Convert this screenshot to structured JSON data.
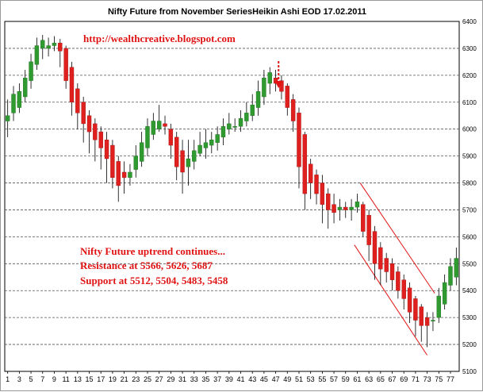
{
  "chart_data": {
    "type": "candlestick",
    "title": "Nifty Future from November SeriesHeikin Ashi EOD 17.02.2011",
    "website": "http://wealthcreative.blogspot.com",
    "annotations": [
      "Nifty Future uptrend continues...",
      "Resistance at 5566, 5626, 5687",
      "Support at 5512, 5504, 5483, 5458"
    ],
    "ylim": [
      5100,
      6400
    ],
    "yticks": [
      5100,
      5200,
      5300,
      5400,
      5500,
      5600,
      5700,
      5800,
      5900,
      6000,
      6100,
      6200,
      6300,
      6400
    ],
    "xlim": [
      1,
      78
    ],
    "xticks": [
      1,
      3,
      5,
      7,
      9,
      11,
      13,
      15,
      17,
      19,
      21,
      23,
      25,
      27,
      29,
      31,
      33,
      35,
      37,
      39,
      41,
      43,
      45,
      47,
      49,
      51,
      53,
      55,
      57,
      59,
      61,
      63,
      65,
      67,
      69,
      71,
      73,
      75,
      77
    ],
    "grid": "horizontal dashed",
    "colors": {
      "up": "#2f9a2f",
      "down": "#e0201e",
      "wick": "#000000",
      "channel": "#e01414",
      "arrow": "#e01414"
    },
    "arrow_at_x": 47.5,
    "channel_lines": [
      {
        "from": [
          61.5,
          5800
        ],
        "to": [
          74.3,
          5390
        ]
      },
      {
        "from": [
          60.5,
          5570
        ],
        "to": [
          73,
          5160
        ]
      }
    ],
    "candles": [
      {
        "x": 1,
        "open": 6030,
        "close": 6050,
        "high": 6110,
        "low": 5970
      },
      {
        "x": 2,
        "open": 6060,
        "close": 6130,
        "high": 6160,
        "low": 6030
      },
      {
        "x": 3,
        "open": 6080,
        "close": 6140,
        "high": 6170,
        "low": 6060
      },
      {
        "x": 4,
        "open": 6120,
        "close": 6190,
        "high": 6220,
        "low": 6100
      },
      {
        "x": 5,
        "open": 6180,
        "close": 6250,
        "high": 6280,
        "low": 6150
      },
      {
        "x": 6,
        "open": 6240,
        "close": 6310,
        "high": 6340,
        "low": 6220
      },
      {
        "x": 7,
        "open": 6300,
        "close": 6330,
        "high": 6350,
        "low": 6260
      },
      {
        "x": 8,
        "open": 6300,
        "close": 6310,
        "high": 6340,
        "low": 6270
      },
      {
        "x": 9,
        "open": 6310,
        "close": 6320,
        "high": 6345,
        "low": 6290
      },
      {
        "x": 10,
        "open": 6320,
        "close": 6290,
        "high": 6335,
        "low": 6230
      },
      {
        "x": 11,
        "open": 6300,
        "close": 6180,
        "high": 6310,
        "low": 6150
      },
      {
        "x": 12,
        "open": 6230,
        "close": 6100,
        "high": 6250,
        "low": 6050
      },
      {
        "x": 13,
        "open": 6150,
        "close": 6060,
        "high": 6170,
        "low": 6000
      },
      {
        "x": 14,
        "open": 6100,
        "close": 6020,
        "high": 6120,
        "low": 5950
      },
      {
        "x": 15,
        "open": 6050,
        "close": 5990,
        "high": 6070,
        "low": 5910
      },
      {
        "x": 16,
        "open": 6020,
        "close": 5960,
        "high": 6040,
        "low": 5880
      },
      {
        "x": 17,
        "open": 5990,
        "close": 5930,
        "high": 6010,
        "low": 5850
      },
      {
        "x": 18,
        "open": 5960,
        "close": 5890,
        "high": 5990,
        "low": 5800
      },
      {
        "x": 19,
        "open": 5940,
        "close": 5820,
        "high": 5960,
        "low": 5780
      },
      {
        "x": 20,
        "open": 5880,
        "close": 5790,
        "high": 5900,
        "low": 5730
      },
      {
        "x": 21,
        "open": 5840,
        "close": 5820,
        "high": 5880,
        "low": 5760
      },
      {
        "x": 22,
        "open": 5820,
        "close": 5840,
        "high": 5870,
        "low": 5790
      },
      {
        "x": 23,
        "open": 5850,
        "close": 5900,
        "high": 5940,
        "low": 5820
      },
      {
        "x": 24,
        "open": 5880,
        "close": 5950,
        "high": 5990,
        "low": 5860
      },
      {
        "x": 25,
        "open": 5930,
        "close": 6010,
        "high": 6040,
        "low": 5900
      },
      {
        "x": 26,
        "open": 5980,
        "close": 6030,
        "high": 6060,
        "low": 5960
      },
      {
        "x": 27,
        "open": 6000,
        "close": 6030,
        "high": 6090,
        "low": 5990
      },
      {
        "x": 28,
        "open": 6020,
        "close": 6010,
        "high": 6050,
        "low": 5980
      },
      {
        "x": 29,
        "open": 6000,
        "close": 5940,
        "high": 6020,
        "low": 5890
      },
      {
        "x": 30,
        "open": 5970,
        "close": 5860,
        "high": 5990,
        "low": 5810
      },
      {
        "x": 31,
        "open": 5920,
        "close": 5840,
        "high": 5960,
        "low": 5760
      },
      {
        "x": 32,
        "open": 5860,
        "close": 5890,
        "high": 5960,
        "low": 5790
      },
      {
        "x": 33,
        "open": 5880,
        "close": 5920,
        "high": 5960,
        "low": 5850
      },
      {
        "x": 34,
        "open": 5910,
        "close": 5940,
        "high": 5990,
        "low": 5900
      },
      {
        "x": 35,
        "open": 5930,
        "close": 5950,
        "high": 6000,
        "low": 5890
      },
      {
        "x": 36,
        "open": 5940,
        "close": 5960,
        "high": 5990,
        "low": 5910
      },
      {
        "x": 37,
        "open": 5950,
        "close": 5980,
        "high": 6010,
        "low": 5920
      },
      {
        "x": 38,
        "open": 5970,
        "close": 6010,
        "high": 6040,
        "low": 5940
      },
      {
        "x": 39,
        "open": 6000,
        "close": 6020,
        "high": 6060,
        "low": 5980
      },
      {
        "x": 40,
        "open": 6010,
        "close": 6010,
        "high": 6040,
        "low": 5990
      },
      {
        "x": 41,
        "open": 6010,
        "close": 6040,
        "high": 6070,
        "low": 5990
      },
      {
        "x": 42,
        "open": 6030,
        "close": 6060,
        "high": 6100,
        "low": 6010
      },
      {
        "x": 43,
        "open": 6050,
        "close": 6090,
        "high": 6130,
        "low": 6030
      },
      {
        "x": 44,
        "open": 6080,
        "close": 6140,
        "high": 6180,
        "low": 6050
      },
      {
        "x": 45,
        "open": 6120,
        "close": 6190,
        "high": 6220,
        "low": 6090
      },
      {
        "x": 46,
        "open": 6170,
        "close": 6210,
        "high": 6230,
        "low": 6130
      },
      {
        "x": 47,
        "open": 6190,
        "close": 6170,
        "high": 6220,
        "low": 6140
      },
      {
        "x": 48,
        "open": 6180,
        "close": 6140,
        "high": 6200,
        "low": 6110
      },
      {
        "x": 49,
        "open": 6160,
        "close": 6080,
        "high": 6170,
        "low": 6050
      },
      {
        "x": 50,
        "open": 6110,
        "close": 6030,
        "high": 6130,
        "low": 5990
      },
      {
        "x": 51,
        "open": 6060,
        "close": 5860,
        "high": 6080,
        "low": 5780
      },
      {
        "x": 52,
        "open": 5980,
        "close": 5760,
        "high": 5990,
        "low": 5700
      },
      {
        "x": 53,
        "open": 5870,
        "close": 5800,
        "high": 5890,
        "low": 5740
      },
      {
        "x": 54,
        "open": 5830,
        "close": 5760,
        "high": 5850,
        "low": 5720
      },
      {
        "x": 55,
        "open": 5800,
        "close": 5720,
        "high": 5830,
        "low": 5650
      },
      {
        "x": 56,
        "open": 5760,
        "close": 5700,
        "high": 5780,
        "low": 5630
      },
      {
        "x": 57,
        "open": 5720,
        "close": 5690,
        "high": 5760,
        "low": 5650
      },
      {
        "x": 58,
        "open": 5700,
        "close": 5710,
        "high": 5740,
        "low": 5660
      },
      {
        "x": 59,
        "open": 5710,
        "close": 5700,
        "high": 5730,
        "low": 5670
      },
      {
        "x": 60,
        "open": 5700,
        "close": 5710,
        "high": 5740,
        "low": 5660
      },
      {
        "x": 61,
        "open": 5710,
        "close": 5730,
        "high": 5760,
        "low": 5690
      },
      {
        "x": 62,
        "open": 5720,
        "close": 5620,
        "high": 5730,
        "low": 5600
      },
      {
        "x": 63,
        "open": 5680,
        "close": 5570,
        "high": 5700,
        "low": 5510
      },
      {
        "x": 64,
        "open": 5620,
        "close": 5500,
        "high": 5640,
        "low": 5440
      },
      {
        "x": 65,
        "open": 5560,
        "close": 5480,
        "high": 5580,
        "low": 5420
      },
      {
        "x": 66,
        "open": 5520,
        "close": 5470,
        "high": 5540,
        "low": 5430
      },
      {
        "x": 67,
        "open": 5500,
        "close": 5440,
        "high": 5520,
        "low": 5400
      },
      {
        "x": 68,
        "open": 5470,
        "close": 5400,
        "high": 5490,
        "low": 5370
      },
      {
        "x": 69,
        "open": 5440,
        "close": 5370,
        "high": 5460,
        "low": 5330
      },
      {
        "x": 70,
        "open": 5410,
        "close": 5320,
        "high": 5430,
        "low": 5280
      },
      {
        "x": 71,
        "open": 5370,
        "close": 5290,
        "high": 5380,
        "low": 5230
      },
      {
        "x": 72,
        "open": 5340,
        "close": 5270,
        "high": 5350,
        "low": 5210
      },
      {
        "x": 73,
        "open": 5300,
        "close": 5270,
        "high": 5320,
        "low": 5190
      },
      {
        "x": 74,
        "open": 5290,
        "close": 5290,
        "high": 5320,
        "low": 5250
      },
      {
        "x": 75,
        "open": 5300,
        "close": 5380,
        "high": 5410,
        "low": 5280
      },
      {
        "x": 76,
        "open": 5350,
        "close": 5430,
        "high": 5460,
        "low": 5330
      },
      {
        "x": 77,
        "open": 5420,
        "close": 5490,
        "high": 5520,
        "low": 5400
      },
      {
        "x": 78,
        "open": 5450,
        "close": 5520,
        "high": 5560,
        "low": 5420
      }
    ]
  }
}
